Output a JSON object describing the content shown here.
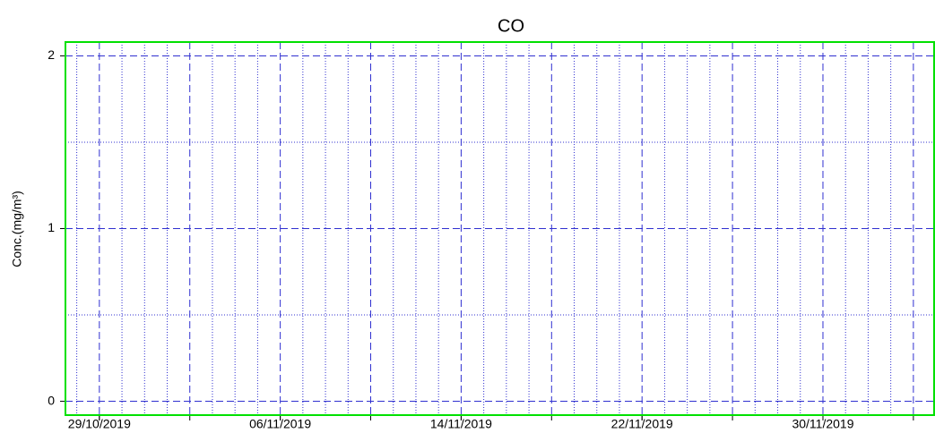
{
  "chart_data": {
    "type": "line",
    "title": "CO",
    "y_label": "Conc.(mg/m³)",
    "series": [],
    "xlim": [
      "2019-10-27T12:00:00",
      "2019-12-04T22:00:00"
    ],
    "xticks": [
      {
        "value": "2019-10-29T00:00:00",
        "label": "29/10/2019"
      },
      {
        "value": "2019-11-06T00:00:00",
        "label": "06/11/2019"
      },
      {
        "value": "2019-11-14T00:00:00",
        "label": "14/11/2019"
      },
      {
        "value": "2019-11-22T00:00:00",
        "label": "22/11/2019"
      },
      {
        "value": "2019-11-30T00:00:00",
        "label": "30/11/2019"
      }
    ],
    "x_major_step_days": 4,
    "x_minor_step_days": 1,
    "ylim": [
      -0.08,
      2.08
    ],
    "yticks": [
      0,
      1,
      2
    ],
    "yminor": [
      0.5,
      1.5
    ],
    "grid": true,
    "grid_color": "#3030d0",
    "frame_color": "#00e000"
  }
}
